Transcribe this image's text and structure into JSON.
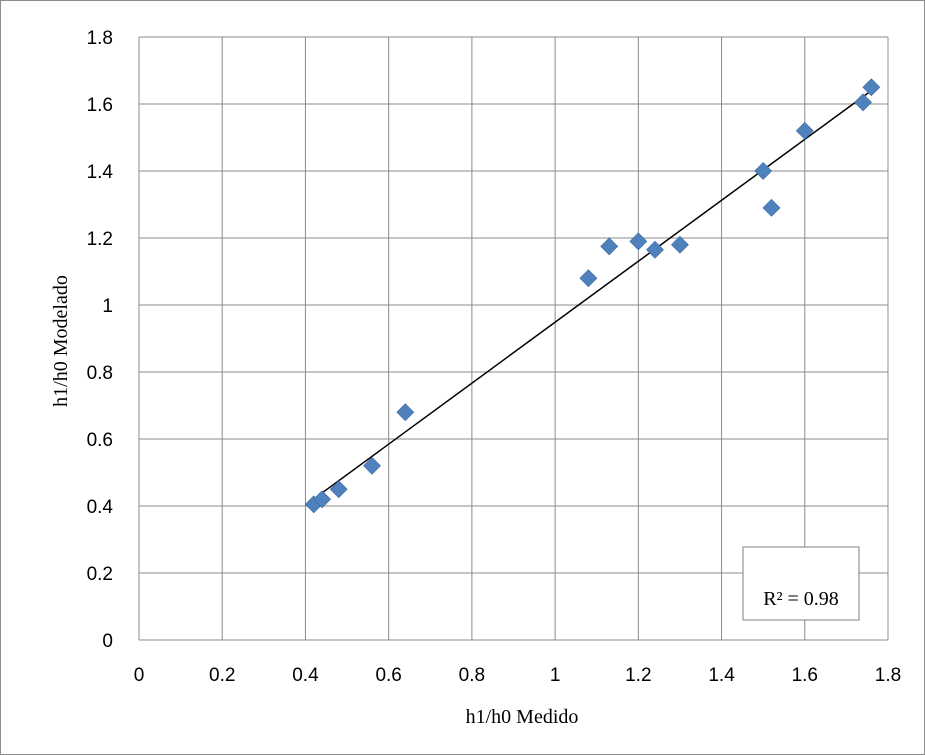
{
  "chart_data": {
    "type": "scatter",
    "xlabel": "h1/h0 Medido",
    "ylabel": "h1/h0 Modelado",
    "xlim": [
      0,
      1.8
    ],
    "ylim": [
      0,
      1.8
    ],
    "x_ticks": [
      "0",
      "0.2",
      "0.4",
      "0.6",
      "0.8",
      "1",
      "1.2",
      "1.4",
      "1.6",
      "1.8"
    ],
    "y_ticks": [
      "0",
      "0.2",
      "0.4",
      "0.6",
      "0.8",
      "1",
      "1.2",
      "1.4",
      "1.6",
      "1.8"
    ],
    "grid": true,
    "marker_color": "#4f81bd",
    "marker_shape": "diamond",
    "points": [
      {
        "x": 0.42,
        "y": 0.405
      },
      {
        "x": 0.44,
        "y": 0.42
      },
      {
        "x": 0.48,
        "y": 0.45
      },
      {
        "x": 0.56,
        "y": 0.52
      },
      {
        "x": 0.64,
        "y": 0.68
      },
      {
        "x": 1.08,
        "y": 1.08
      },
      {
        "x": 1.13,
        "y": 1.175
      },
      {
        "x": 1.2,
        "y": 1.19
      },
      {
        "x": 1.24,
        "y": 1.165
      },
      {
        "x": 1.3,
        "y": 1.18
      },
      {
        "x": 1.5,
        "y": 1.4
      },
      {
        "x": 1.52,
        "y": 1.29
      },
      {
        "x": 1.6,
        "y": 1.52
      },
      {
        "x": 1.74,
        "y": 1.605
      },
      {
        "x": 1.76,
        "y": 1.65
      }
    ],
    "trendline": {
      "x": [
        0.43,
        1.76
      ],
      "y": [
        0.43,
        1.64
      ],
      "color": "#000000"
    },
    "annotation": "R² = 0.98"
  }
}
